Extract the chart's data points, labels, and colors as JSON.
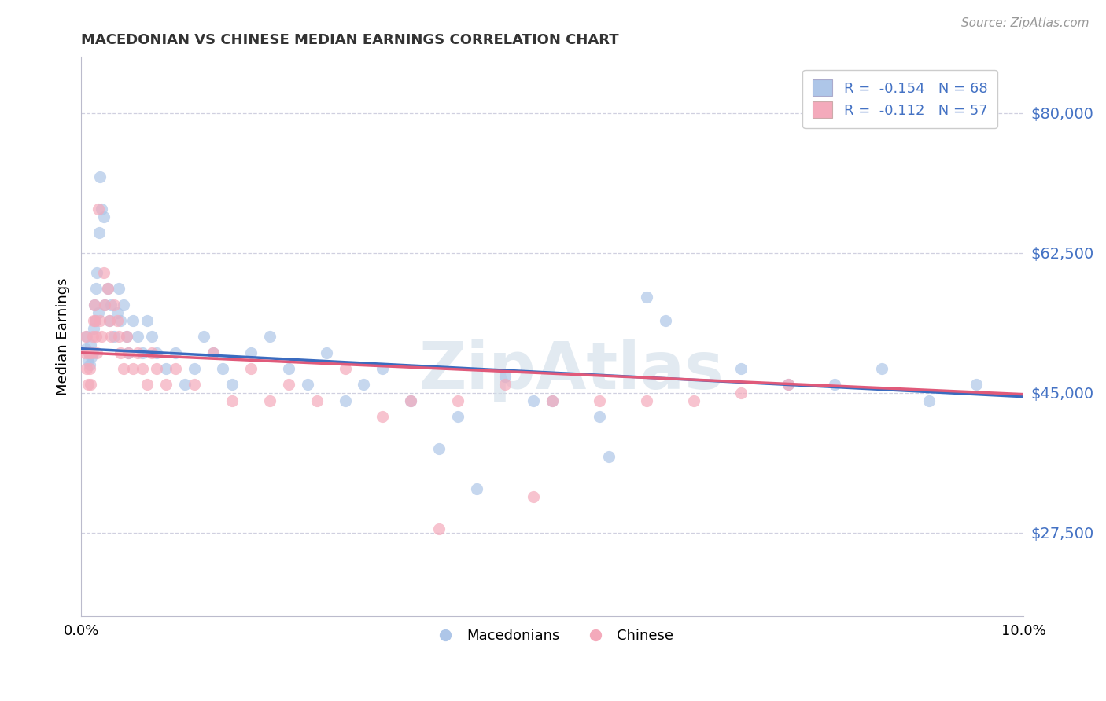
{
  "title": "MACEDONIAN VS CHINESE MEDIAN EARNINGS CORRELATION CHART",
  "source": "Source: ZipAtlas.com",
  "ylabel": "Median Earnings",
  "yticks": [
    27500,
    45000,
    62500,
    80000
  ],
  "ytick_labels": [
    "$27,500",
    "$45,000",
    "$62,500",
    "$80,000"
  ],
  "xmin": 0.0,
  "xmax": 10.0,
  "ymin": 17000,
  "ymax": 87000,
  "macedonian_color": "#aec6e8",
  "chinese_color": "#f4aabb",
  "macedonian_line_color": "#3a6bbf",
  "chinese_line_color": "#e05a7a",
  "legend_label_1": "R =  -0.154   N = 68",
  "legend_label_2": "R =  -0.112   N = 57",
  "watermark": "ZipAtlas",
  "background_color": "#ffffff",
  "grid_color": "#d0d0e0",
  "macedonians_scatter": [
    [
      0.05,
      50500
    ],
    [
      0.06,
      52000
    ],
    [
      0.07,
      49000
    ],
    [
      0.08,
      50000
    ],
    [
      0.09,
      48500
    ],
    [
      0.1,
      51000
    ],
    [
      0.11,
      49500
    ],
    [
      0.12,
      50000
    ],
    [
      0.13,
      53000
    ],
    [
      0.14,
      56000
    ],
    [
      0.15,
      54000
    ],
    [
      0.16,
      58000
    ],
    [
      0.17,
      60000
    ],
    [
      0.18,
      55000
    ],
    [
      0.19,
      65000
    ],
    [
      0.2,
      72000
    ],
    [
      0.22,
      68000
    ],
    [
      0.24,
      67000
    ],
    [
      0.25,
      56000
    ],
    [
      0.28,
      58000
    ],
    [
      0.3,
      54000
    ],
    [
      0.32,
      56000
    ],
    [
      0.35,
      52000
    ],
    [
      0.38,
      55000
    ],
    [
      0.4,
      58000
    ],
    [
      0.42,
      54000
    ],
    [
      0.45,
      56000
    ],
    [
      0.48,
      52000
    ],
    [
      0.5,
      50000
    ],
    [
      0.55,
      54000
    ],
    [
      0.6,
      52000
    ],
    [
      0.65,
      50000
    ],
    [
      0.7,
      54000
    ],
    [
      0.75,
      52000
    ],
    [
      0.8,
      50000
    ],
    [
      0.9,
      48000
    ],
    [
      1.0,
      50000
    ],
    [
      1.1,
      46000
    ],
    [
      1.2,
      48000
    ],
    [
      1.3,
      52000
    ],
    [
      1.4,
      50000
    ],
    [
      1.5,
      48000
    ],
    [
      1.6,
      46000
    ],
    [
      1.8,
      50000
    ],
    [
      2.0,
      52000
    ],
    [
      2.2,
      48000
    ],
    [
      2.4,
      46000
    ],
    [
      2.6,
      50000
    ],
    [
      2.8,
      44000
    ],
    [
      3.0,
      46000
    ],
    [
      3.2,
      48000
    ],
    [
      3.5,
      44000
    ],
    [
      3.8,
      38000
    ],
    [
      4.0,
      42000
    ],
    [
      4.2,
      33000
    ],
    [
      4.5,
      47000
    ],
    [
      4.8,
      44000
    ],
    [
      5.0,
      44000
    ],
    [
      5.5,
      42000
    ],
    [
      5.6,
      37000
    ],
    [
      6.0,
      57000
    ],
    [
      6.2,
      54000
    ],
    [
      7.0,
      48000
    ],
    [
      7.5,
      46000
    ],
    [
      8.0,
      46000
    ],
    [
      8.5,
      48000
    ],
    [
      9.0,
      44000
    ],
    [
      9.5,
      46000
    ]
  ],
  "chinese_scatter": [
    [
      0.04,
      50000
    ],
    [
      0.05,
      52000
    ],
    [
      0.06,
      48000
    ],
    [
      0.07,
      46000
    ],
    [
      0.08,
      50000
    ],
    [
      0.09,
      48000
    ],
    [
      0.1,
      46000
    ],
    [
      0.11,
      50000
    ],
    [
      0.12,
      52000
    ],
    [
      0.13,
      54000
    ],
    [
      0.14,
      56000
    ],
    [
      0.15,
      54000
    ],
    [
      0.16,
      52000
    ],
    [
      0.17,
      50000
    ],
    [
      0.18,
      68000
    ],
    [
      0.2,
      54000
    ],
    [
      0.22,
      52000
    ],
    [
      0.24,
      60000
    ],
    [
      0.25,
      56000
    ],
    [
      0.28,
      58000
    ],
    [
      0.3,
      54000
    ],
    [
      0.32,
      52000
    ],
    [
      0.35,
      56000
    ],
    [
      0.38,
      54000
    ],
    [
      0.4,
      52000
    ],
    [
      0.42,
      50000
    ],
    [
      0.45,
      48000
    ],
    [
      0.48,
      52000
    ],
    [
      0.5,
      50000
    ],
    [
      0.55,
      48000
    ],
    [
      0.6,
      50000
    ],
    [
      0.65,
      48000
    ],
    [
      0.7,
      46000
    ],
    [
      0.75,
      50000
    ],
    [
      0.8,
      48000
    ],
    [
      0.9,
      46000
    ],
    [
      1.0,
      48000
    ],
    [
      1.2,
      46000
    ],
    [
      1.4,
      50000
    ],
    [
      1.6,
      44000
    ],
    [
      1.8,
      48000
    ],
    [
      2.0,
      44000
    ],
    [
      2.2,
      46000
    ],
    [
      2.5,
      44000
    ],
    [
      2.8,
      48000
    ],
    [
      3.2,
      42000
    ],
    [
      3.5,
      44000
    ],
    [
      3.8,
      28000
    ],
    [
      4.0,
      44000
    ],
    [
      4.5,
      46000
    ],
    [
      4.8,
      32000
    ],
    [
      5.0,
      44000
    ],
    [
      5.5,
      44000
    ],
    [
      6.0,
      44000
    ],
    [
      6.5,
      44000
    ],
    [
      7.0,
      45000
    ],
    [
      7.5,
      46000
    ]
  ]
}
